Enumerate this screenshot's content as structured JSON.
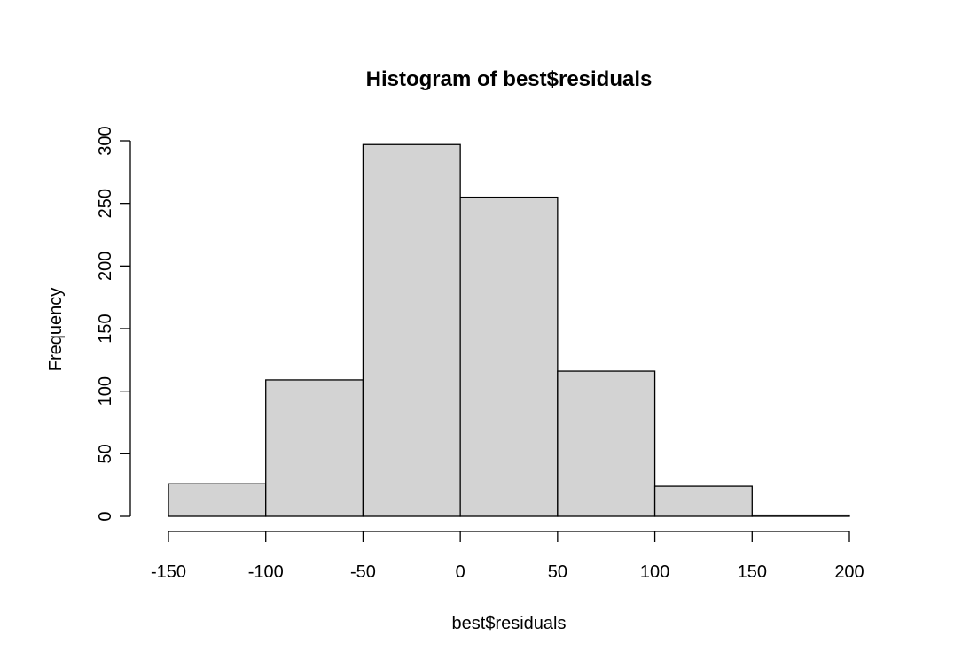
{
  "chart_data": {
    "type": "bar",
    "subtype": "histogram",
    "title": "Histogram of best$residuals",
    "xlabel": "best$residuals",
    "ylabel": "Frequency",
    "bin_edges": [
      -150,
      -100,
      -50,
      0,
      50,
      100,
      150,
      200
    ],
    "values": [
      26,
      109,
      297,
      255,
      116,
      24,
      1
    ],
    "xlim": [
      -150,
      200
    ],
    "ylim": [
      0,
      300
    ],
    "x_ticks": [
      -150,
      -100,
      -50,
      0,
      50,
      100,
      150,
      200
    ],
    "y_ticks": [
      0,
      50,
      100,
      150,
      200,
      250,
      300
    ],
    "colors": {
      "bar_fill": "#d3d3d3",
      "bar_stroke": "#000000",
      "background": "#ffffff"
    },
    "grid": false,
    "legend": "none"
  }
}
